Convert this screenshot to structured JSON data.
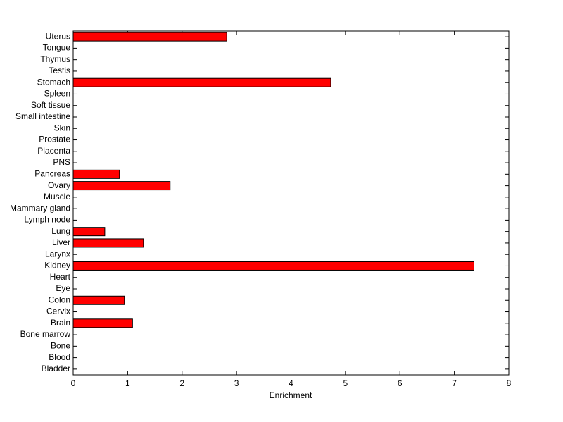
{
  "chart_data": {
    "type": "hbar",
    "xlabel": "Enrichment",
    "categories": [
      "Uterus",
      "Tongue",
      "Thymus",
      "Testis",
      "Stomach",
      "Spleen",
      "Soft tissue",
      "Small intestine",
      "Skin",
      "Prostate",
      "Placenta",
      "PNS",
      "Pancreas",
      "Ovary",
      "Muscle",
      "Mammary gland",
      "Lymph node",
      "Lung",
      "Liver",
      "Larynx",
      "Kidney",
      "Heart",
      "Eye",
      "Colon",
      "Cervix",
      "Brain",
      "Bone marrow",
      "Bone",
      "Blood",
      "Bladder"
    ],
    "values": [
      2.82,
      0,
      0,
      0,
      4.73,
      0,
      0,
      0,
      0,
      0,
      0,
      0,
      0.85,
      1.78,
      0,
      0,
      0,
      0.58,
      1.29,
      0,
      7.36,
      0,
      0,
      0.94,
      0,
      1.09,
      0,
      0,
      0,
      0
    ],
    "color": "#ff0000",
    "xlim": [
      0,
      8
    ],
    "xticks": [
      0,
      1,
      2,
      3,
      4,
      5,
      6,
      7,
      8
    ]
  }
}
